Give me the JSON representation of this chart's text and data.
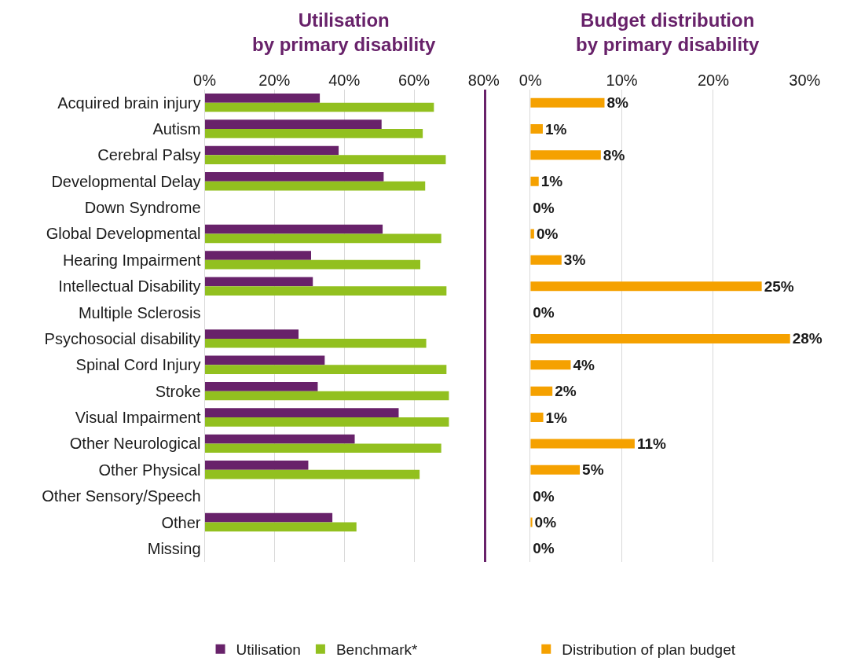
{
  "chart_data": [
    {
      "type": "bar",
      "orientation": "horizontal",
      "title": "Utilisation\nby primary disability",
      "categories": [
        "Acquired brain injury",
        "Autism",
        "Cerebral Palsy",
        "Developmental Delay",
        "Down Syndrome",
        "Global Developmental",
        "Hearing Impairment",
        "Intellectual Disability",
        "Multiple Sclerosis",
        "Psychosocial disability",
        "Spinal Cord Injury",
        "Stroke",
        "Visual Impairment",
        "Other Neurological",
        "Other Physical",
        "Other Sensory/Speech",
        "Other",
        "Missing"
      ],
      "series": [
        {
          "name": "Utilisation",
          "color": "#68226a",
          "values": [
            33.0,
            50.7,
            38.4,
            51.3,
            null,
            51.0,
            30.5,
            31.0,
            null,
            26.9,
            34.4,
            32.4,
            55.6,
            43.0,
            29.7,
            null,
            36.6,
            null
          ]
        },
        {
          "name": "Benchmark*",
          "color": "#92c01f",
          "values": [
            65.7,
            62.5,
            69.1,
            63.2,
            null,
            67.8,
            61.8,
            69.3,
            null,
            63.5,
            69.3,
            70.0,
            70.0,
            67.8,
            61.6,
            null,
            43.5,
            null
          ]
        }
      ],
      "xlim": [
        0,
        80
      ],
      "xticks": [
        {
          "value": 0,
          "label": "0%"
        },
        {
          "value": 20,
          "label": "20%"
        },
        {
          "value": 40,
          "label": "40%"
        },
        {
          "value": 60,
          "label": "60%"
        },
        {
          "value": 80,
          "label": "80%"
        }
      ],
      "grid": "x",
      "legend": "bottom"
    },
    {
      "type": "bar",
      "orientation": "horizontal",
      "title": "Budget distribution\nby primary disability",
      "categories": [
        null,
        null,
        null,
        null,
        null,
        null,
        null,
        null,
        null,
        null,
        null,
        null,
        null,
        null,
        null,
        null,
        null,
        null
      ],
      "series": [
        {
          "name": "Distribution of plan budget",
          "color": "#f5a100",
          "values": [
            8.1,
            1.35,
            7.7,
            0.9,
            0,
            0.4,
            3.4,
            25.3,
            0,
            28.4,
            4.4,
            2.4,
            1.4,
            11.4,
            5.4,
            0,
            0.2,
            0
          ],
          "value_labels": [
            "8%",
            "1%",
            "8%",
            "1%",
            "0%",
            "0%",
            "3%",
            "25%",
            "0%",
            "28%",
            "4%",
            "2%",
            "1%",
            "11%",
            "5%",
            "0%",
            "0%",
            "0%"
          ]
        }
      ],
      "xlim": [
        0,
        30
      ],
      "xticks": [
        {
          "value": 0,
          "label": "0%"
        },
        {
          "value": 10,
          "label": "10%"
        },
        {
          "value": 20,
          "label": "20%"
        },
        {
          "value": 30,
          "label": "30%"
        }
      ],
      "grid": "x",
      "legend": "bottom",
      "tick_labels": "x"
    }
  ]
}
